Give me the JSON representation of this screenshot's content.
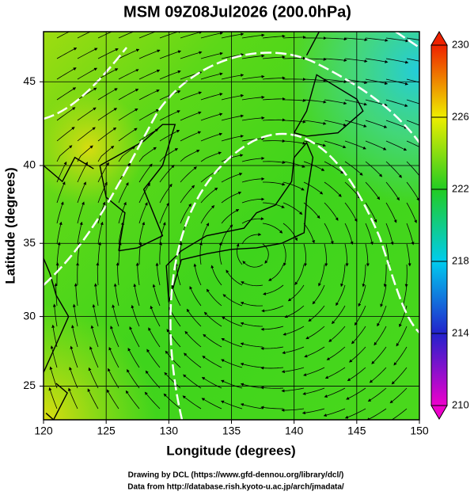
{
  "chart_data": {
    "type": "field",
    "title": "MSM 09Z08Jul2026 (200.0hPa)",
    "x_label": "Longitude (degrees)",
    "y_label": "Latitude  (degrees)",
    "xlim": [
      120,
      150
    ],
    "ylim": [
      22.5,
      47.8
    ],
    "xticks": [
      120,
      125,
      130,
      135,
      140,
      145,
      150
    ],
    "yticks": [
      25,
      30,
      35,
      40,
      45
    ],
    "projection": "mercator",
    "grid": true,
    "colorbar": {
      "clim": [
        210,
        230
      ],
      "ticks": [
        210,
        214,
        218,
        222,
        226,
        230
      ],
      "colors": [
        "#ee00cc",
        "#2222cc",
        "#00ccee",
        "#22cc22",
        "#eeee00",
        "#ee2200"
      ]
    },
    "credits": [
      "Drawing by DCL (https://www.gfd-dennou.org/library/dcl/)",
      "Data from http://database.rish.kyoto-u.ac.jp/arch/jmadata/"
    ]
  }
}
